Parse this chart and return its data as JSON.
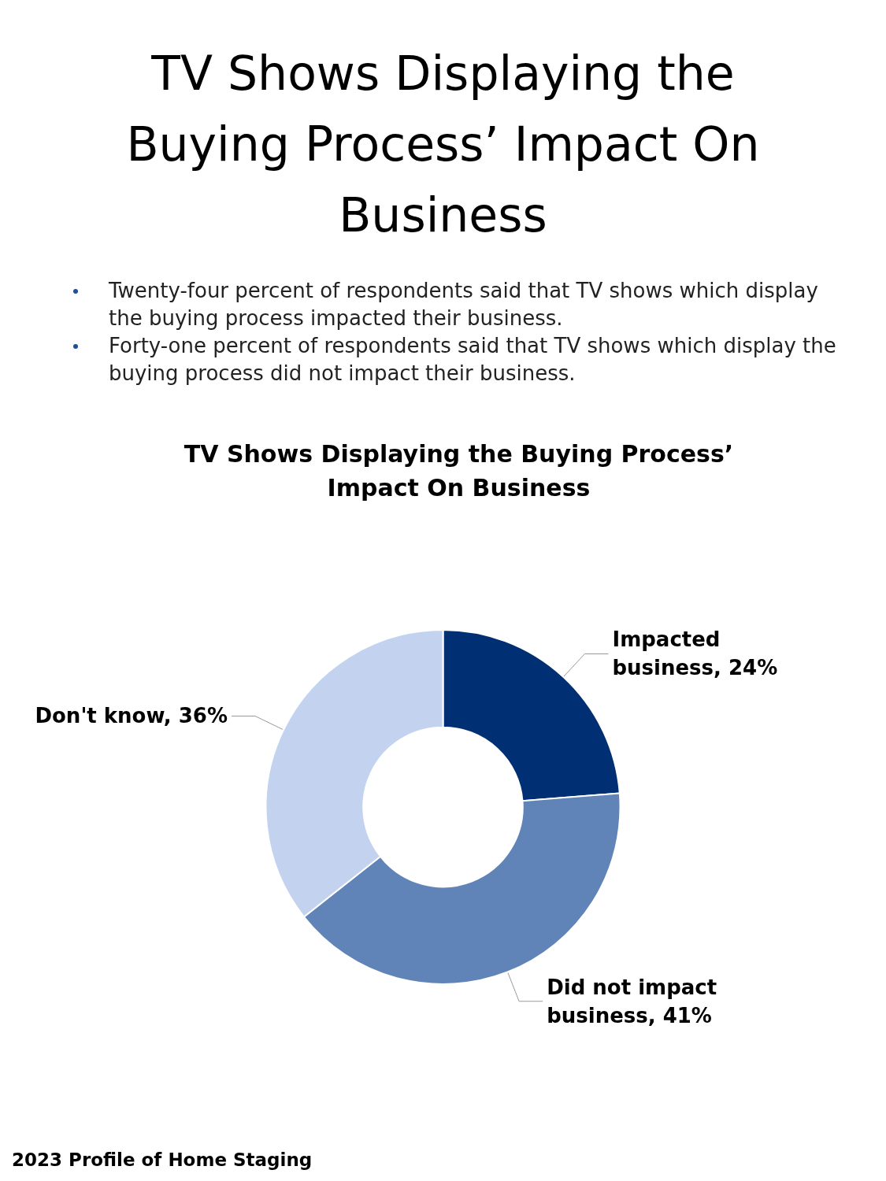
{
  "chart_data": {
    "type": "donut",
    "title": "TV Shows Displaying the Buying Process’ Impact On Business",
    "subtitle": "TV Shows Displaying the Buying Process’ Impact On Business",
    "categories": [
      "Impacted business",
      "Did not impact business",
      "Don't know"
    ],
    "values": [
      24,
      41,
      36
    ],
    "value_labels": [
      "24%",
      "41%",
      "36%"
    ],
    "colors": [
      "#002f73",
      "#6084b8",
      "#c3d3ef"
    ],
    "legend": false,
    "annotations": [
      "Twenty-four percent of respondents said that TV shows which display the buying process impacted their business.",
      "Forty-one percent of respondents said that TV shows which display the buying process did not impact their business.",
      "2023 Profile of Home Staging"
    ]
  }
}
